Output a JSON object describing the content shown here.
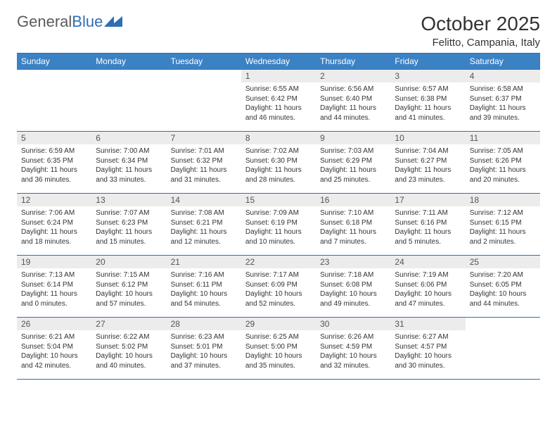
{
  "brand": {
    "part1": "General",
    "part2": "Blue"
  },
  "title": "October 2025",
  "location": "Felitto, Campania, Italy",
  "colors": {
    "header_bg": "#3b82c4",
    "border": "#2f6fb3",
    "daynum_bg": "#ececec",
    "text": "#333333",
    "logo_gray": "#5a5a5a",
    "logo_blue": "#2f6fb3"
  },
  "weekdays": [
    "Sunday",
    "Monday",
    "Tuesday",
    "Wednesday",
    "Thursday",
    "Friday",
    "Saturday"
  ],
  "weeks": [
    [
      {
        "n": "",
        "sr": "",
        "ss": "",
        "dl": ""
      },
      {
        "n": "",
        "sr": "",
        "ss": "",
        "dl": ""
      },
      {
        "n": "",
        "sr": "",
        "ss": "",
        "dl": ""
      },
      {
        "n": "1",
        "sr": "Sunrise: 6:55 AM",
        "ss": "Sunset: 6:42 PM",
        "dl": "Daylight: 11 hours and 46 minutes."
      },
      {
        "n": "2",
        "sr": "Sunrise: 6:56 AM",
        "ss": "Sunset: 6:40 PM",
        "dl": "Daylight: 11 hours and 44 minutes."
      },
      {
        "n": "3",
        "sr": "Sunrise: 6:57 AM",
        "ss": "Sunset: 6:38 PM",
        "dl": "Daylight: 11 hours and 41 minutes."
      },
      {
        "n": "4",
        "sr": "Sunrise: 6:58 AM",
        "ss": "Sunset: 6:37 PM",
        "dl": "Daylight: 11 hours and 39 minutes."
      }
    ],
    [
      {
        "n": "5",
        "sr": "Sunrise: 6:59 AM",
        "ss": "Sunset: 6:35 PM",
        "dl": "Daylight: 11 hours and 36 minutes."
      },
      {
        "n": "6",
        "sr": "Sunrise: 7:00 AM",
        "ss": "Sunset: 6:34 PM",
        "dl": "Daylight: 11 hours and 33 minutes."
      },
      {
        "n": "7",
        "sr": "Sunrise: 7:01 AM",
        "ss": "Sunset: 6:32 PM",
        "dl": "Daylight: 11 hours and 31 minutes."
      },
      {
        "n": "8",
        "sr": "Sunrise: 7:02 AM",
        "ss": "Sunset: 6:30 PM",
        "dl": "Daylight: 11 hours and 28 minutes."
      },
      {
        "n": "9",
        "sr": "Sunrise: 7:03 AM",
        "ss": "Sunset: 6:29 PM",
        "dl": "Daylight: 11 hours and 25 minutes."
      },
      {
        "n": "10",
        "sr": "Sunrise: 7:04 AM",
        "ss": "Sunset: 6:27 PM",
        "dl": "Daylight: 11 hours and 23 minutes."
      },
      {
        "n": "11",
        "sr": "Sunrise: 7:05 AM",
        "ss": "Sunset: 6:26 PM",
        "dl": "Daylight: 11 hours and 20 minutes."
      }
    ],
    [
      {
        "n": "12",
        "sr": "Sunrise: 7:06 AM",
        "ss": "Sunset: 6:24 PM",
        "dl": "Daylight: 11 hours and 18 minutes."
      },
      {
        "n": "13",
        "sr": "Sunrise: 7:07 AM",
        "ss": "Sunset: 6:23 PM",
        "dl": "Daylight: 11 hours and 15 minutes."
      },
      {
        "n": "14",
        "sr": "Sunrise: 7:08 AM",
        "ss": "Sunset: 6:21 PM",
        "dl": "Daylight: 11 hours and 12 minutes."
      },
      {
        "n": "15",
        "sr": "Sunrise: 7:09 AM",
        "ss": "Sunset: 6:19 PM",
        "dl": "Daylight: 11 hours and 10 minutes."
      },
      {
        "n": "16",
        "sr": "Sunrise: 7:10 AM",
        "ss": "Sunset: 6:18 PM",
        "dl": "Daylight: 11 hours and 7 minutes."
      },
      {
        "n": "17",
        "sr": "Sunrise: 7:11 AM",
        "ss": "Sunset: 6:16 PM",
        "dl": "Daylight: 11 hours and 5 minutes."
      },
      {
        "n": "18",
        "sr": "Sunrise: 7:12 AM",
        "ss": "Sunset: 6:15 PM",
        "dl": "Daylight: 11 hours and 2 minutes."
      }
    ],
    [
      {
        "n": "19",
        "sr": "Sunrise: 7:13 AM",
        "ss": "Sunset: 6:14 PM",
        "dl": "Daylight: 11 hours and 0 minutes."
      },
      {
        "n": "20",
        "sr": "Sunrise: 7:15 AM",
        "ss": "Sunset: 6:12 PM",
        "dl": "Daylight: 10 hours and 57 minutes."
      },
      {
        "n": "21",
        "sr": "Sunrise: 7:16 AM",
        "ss": "Sunset: 6:11 PM",
        "dl": "Daylight: 10 hours and 54 minutes."
      },
      {
        "n": "22",
        "sr": "Sunrise: 7:17 AM",
        "ss": "Sunset: 6:09 PM",
        "dl": "Daylight: 10 hours and 52 minutes."
      },
      {
        "n": "23",
        "sr": "Sunrise: 7:18 AM",
        "ss": "Sunset: 6:08 PM",
        "dl": "Daylight: 10 hours and 49 minutes."
      },
      {
        "n": "24",
        "sr": "Sunrise: 7:19 AM",
        "ss": "Sunset: 6:06 PM",
        "dl": "Daylight: 10 hours and 47 minutes."
      },
      {
        "n": "25",
        "sr": "Sunrise: 7:20 AM",
        "ss": "Sunset: 6:05 PM",
        "dl": "Daylight: 10 hours and 44 minutes."
      }
    ],
    [
      {
        "n": "26",
        "sr": "Sunrise: 6:21 AM",
        "ss": "Sunset: 5:04 PM",
        "dl": "Daylight: 10 hours and 42 minutes."
      },
      {
        "n": "27",
        "sr": "Sunrise: 6:22 AM",
        "ss": "Sunset: 5:02 PM",
        "dl": "Daylight: 10 hours and 40 minutes."
      },
      {
        "n": "28",
        "sr": "Sunrise: 6:23 AM",
        "ss": "Sunset: 5:01 PM",
        "dl": "Daylight: 10 hours and 37 minutes."
      },
      {
        "n": "29",
        "sr": "Sunrise: 6:25 AM",
        "ss": "Sunset: 5:00 PM",
        "dl": "Daylight: 10 hours and 35 minutes."
      },
      {
        "n": "30",
        "sr": "Sunrise: 6:26 AM",
        "ss": "Sunset: 4:59 PM",
        "dl": "Daylight: 10 hours and 32 minutes."
      },
      {
        "n": "31",
        "sr": "Sunrise: 6:27 AM",
        "ss": "Sunset: 4:57 PM",
        "dl": "Daylight: 10 hours and 30 minutes."
      },
      {
        "n": "",
        "sr": "",
        "ss": "",
        "dl": ""
      }
    ]
  ]
}
